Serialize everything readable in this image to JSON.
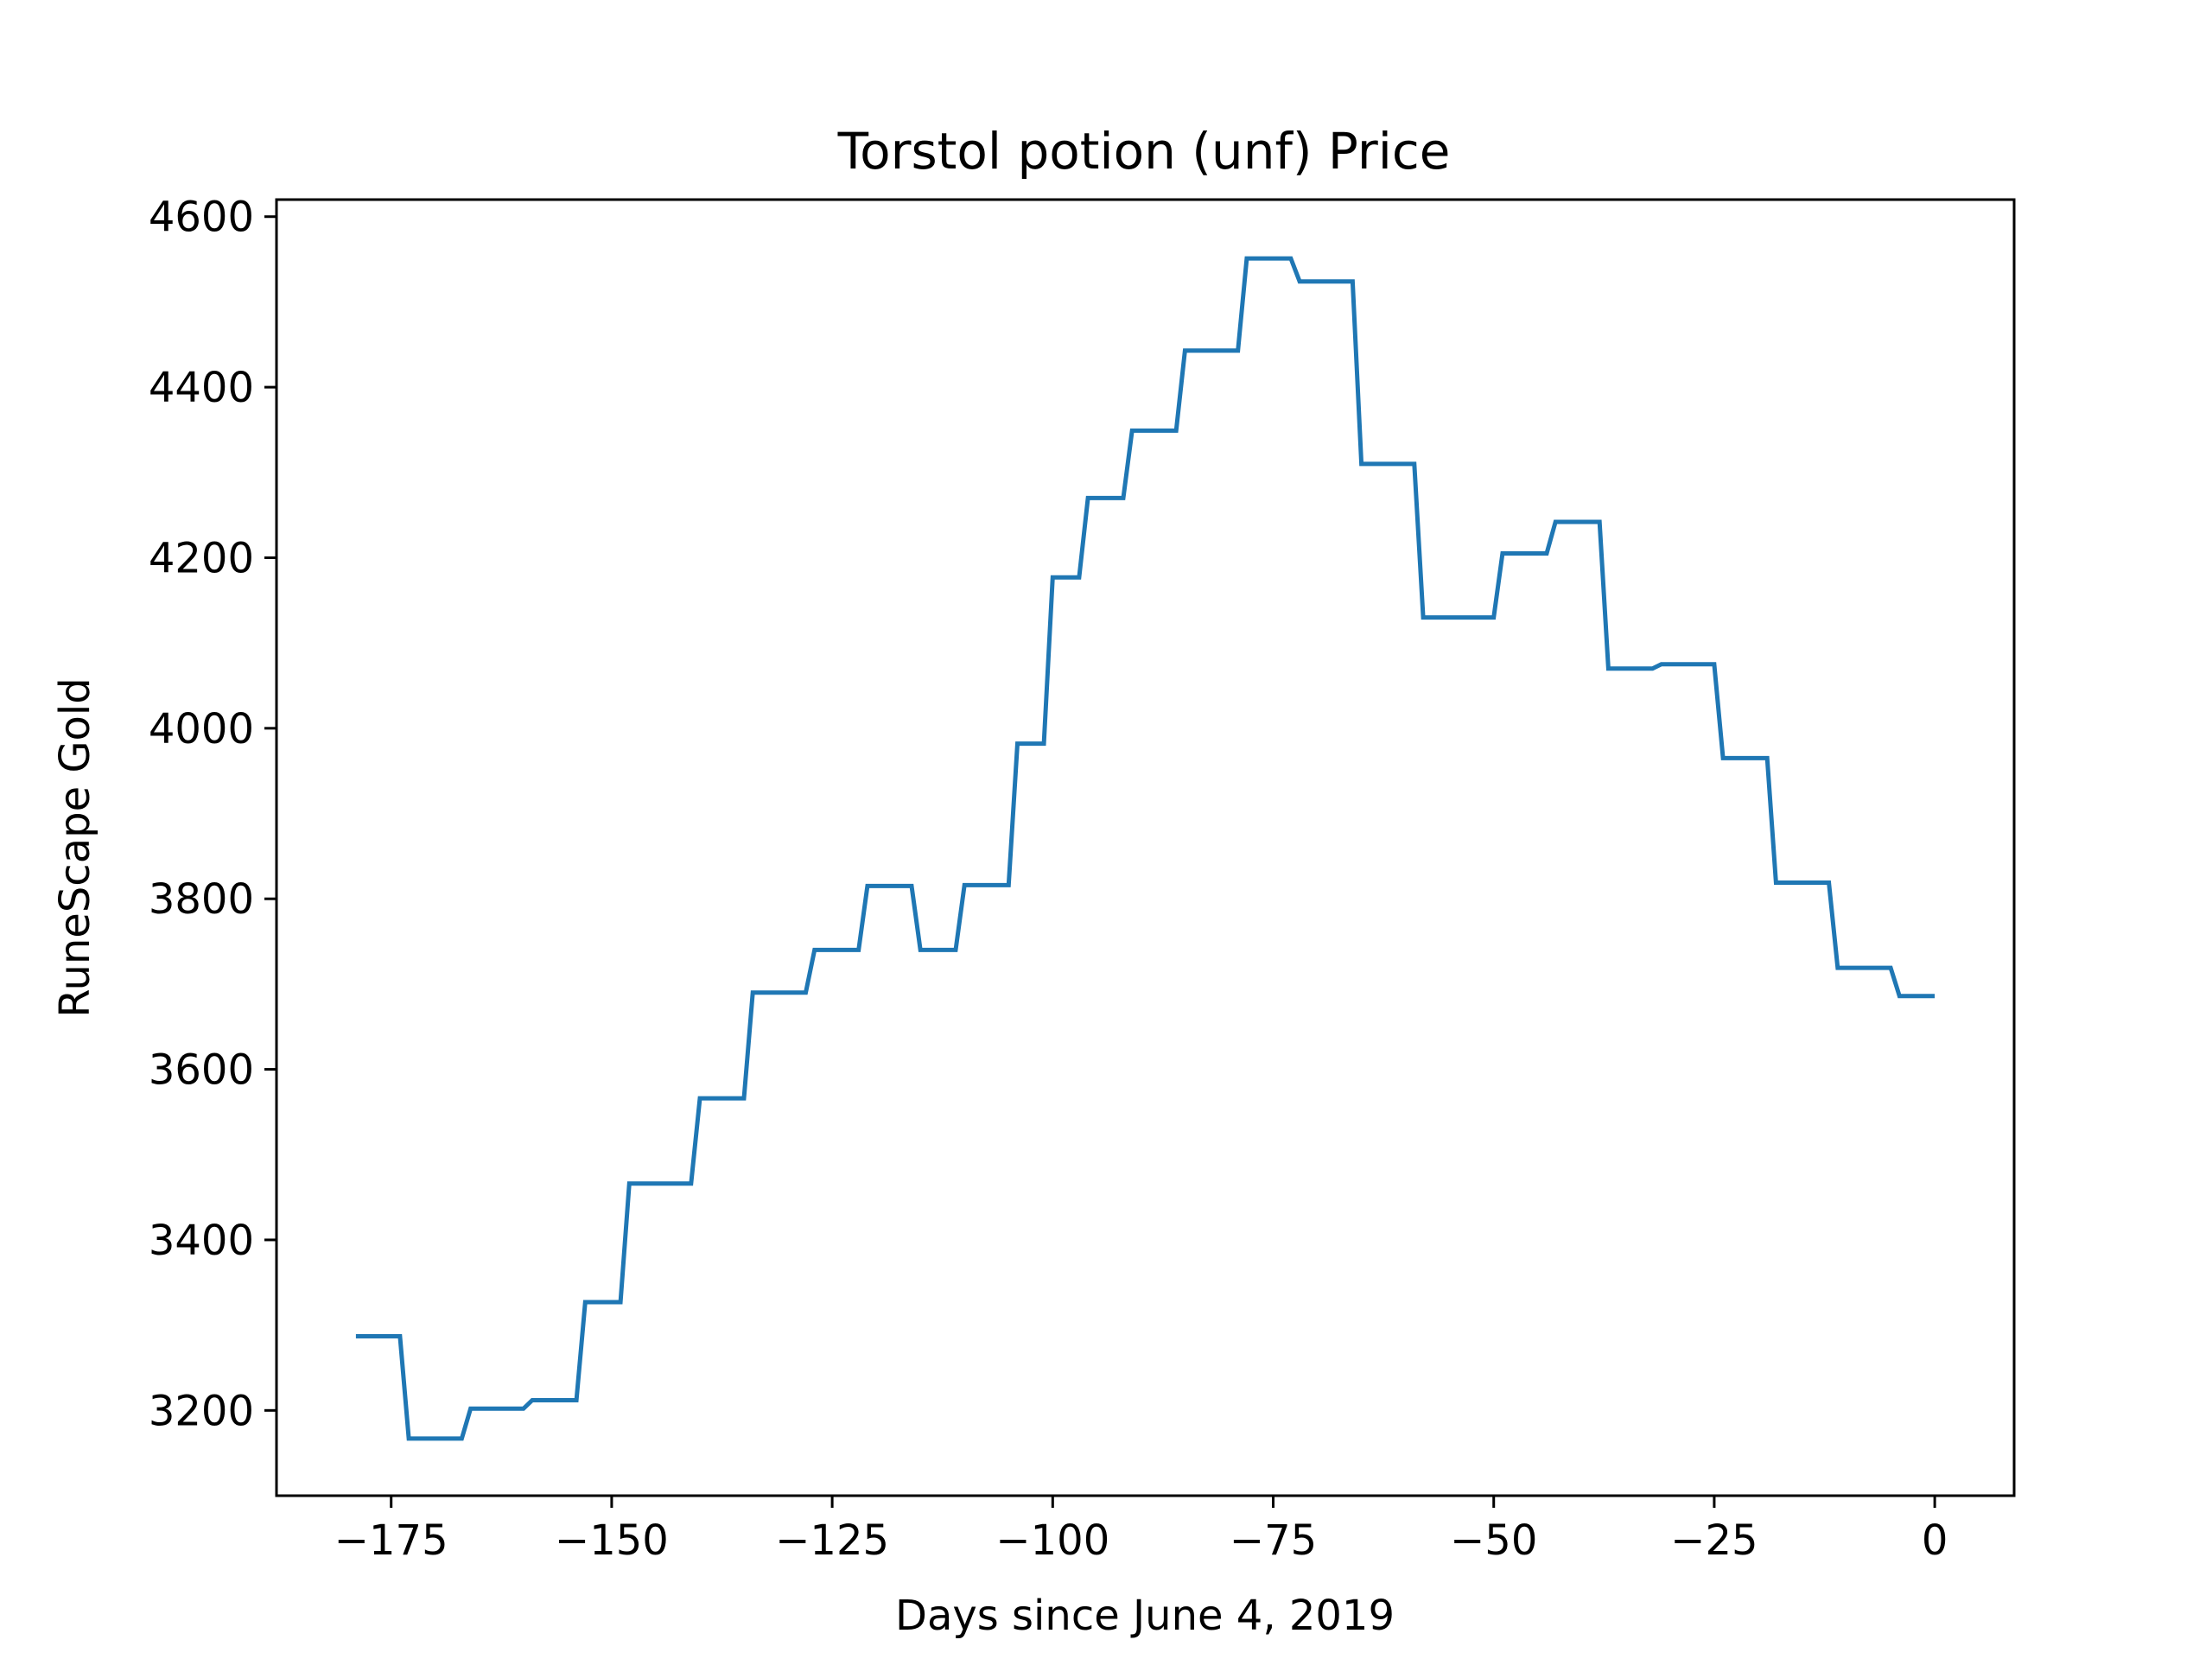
{
  "chart_data": {
    "type": "line",
    "title": "Torstol potion (unf) Price",
    "xlabel": "Days since June 4, 2019",
    "ylabel": "RuneScape Gold",
    "xlim": [
      -188,
      9
    ],
    "ylim": [
      3100,
      4620
    ],
    "xticks": [
      -175,
      -150,
      -125,
      -100,
      -75,
      -50,
      -25,
      0
    ],
    "xtick_labels": [
      "−175",
      "−150",
      "−125",
      "−100",
      "−75",
      "−50",
      "−25",
      "0"
    ],
    "yticks": [
      3200,
      3400,
      3600,
      3800,
      4000,
      4200,
      4400,
      4600
    ],
    "ytick_labels": [
      "3200",
      "3400",
      "3600",
      "3800",
      "4000",
      "4200",
      "4400",
      "4600"
    ],
    "grid": false,
    "legend": "none",
    "line_color": "#1f77b4",
    "series": [
      {
        "x": [
          -179,
          -174,
          -173,
          -167,
          -166,
          -160,
          -159,
          -154,
          -153,
          -149,
          -148,
          -141,
          -140,
          -135,
          -134,
          -128,
          -127,
          -122,
          -121,
          -116,
          -115,
          -111,
          -110,
          -105,
          -104,
          -101,
          -100,
          -97,
          -96,
          -92,
          -91,
          -86,
          -85,
          -79,
          -78,
          -73,
          -72,
          -66,
          -65,
          -59,
          -58,
          -50,
          -49,
          -44,
          -43,
          -38,
          -37,
          -32,
          -31,
          -25,
          -24,
          -19,
          -18,
          -12,
          -11,
          -5,
          -4,
          0
        ],
        "y": [
          3287,
          3287,
          3167,
          3167,
          3202,
          3202,
          3212,
          3212,
          3327,
          3327,
          3466,
          3466,
          3566,
          3566,
          3690,
          3690,
          3740,
          3740,
          3815,
          3815,
          3740,
          3740,
          3816,
          3816,
          3982,
          3982,
          4177,
          4177,
          4270,
          4270,
          4349,
          4349,
          4443,
          4443,
          4551,
          4551,
          4524,
          4524,
          4310,
          4310,
          4130,
          4130,
          4205,
          4205,
          4242,
          4242,
          4070,
          4070,
          4075,
          4075,
          3965,
          3965,
          3819,
          3819,
          3719,
          3719,
          3686,
          3686
        ]
      }
    ]
  }
}
